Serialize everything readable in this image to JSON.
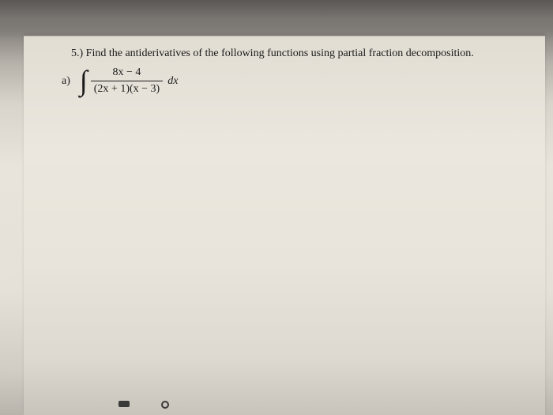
{
  "question": {
    "number": "5.)",
    "prompt": "Find the antiderivatives of the following functions using partial fraction decomposition.",
    "part_label": "a)",
    "integral": {
      "numerator": "8x  −  4",
      "denominator": "(2x  +  1)(x  −  3)",
      "differential": "dx"
    }
  },
  "colors": {
    "text": "#1a1a1a",
    "paper_top": "#e2ddd3",
    "paper_mid": "#e8e4db",
    "background_dark": "#6b6865"
  },
  "typography": {
    "body_fontsize": 14,
    "integral_fontsize": 36,
    "font_family": "Georgia, Times New Roman, serif"
  }
}
